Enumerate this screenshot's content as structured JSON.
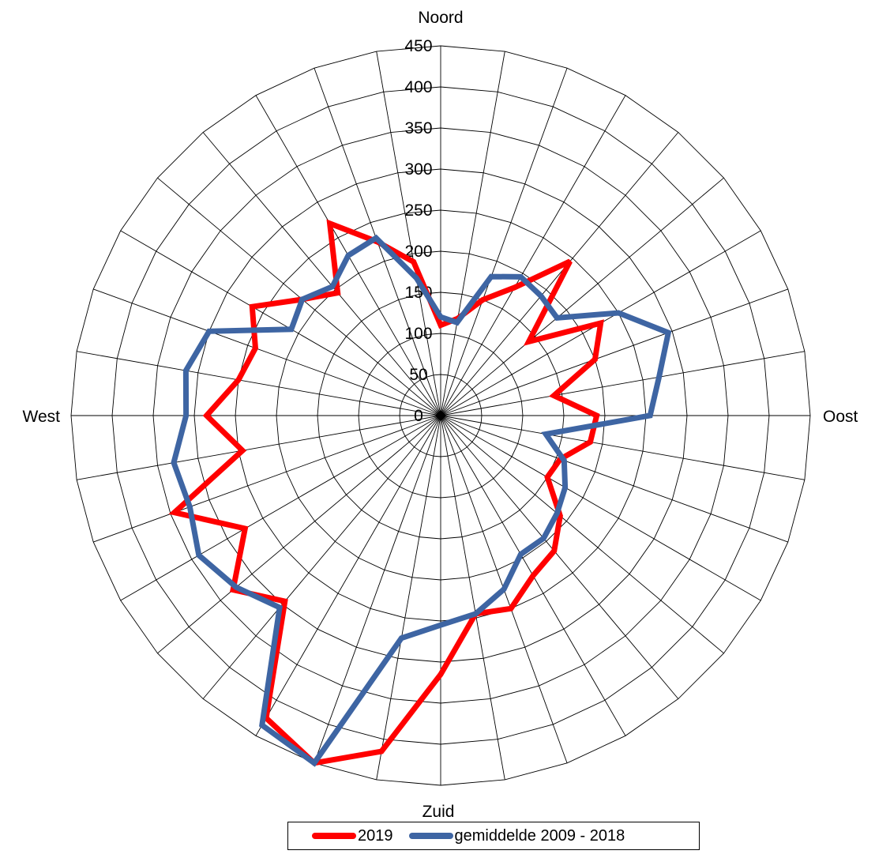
{
  "chart_data": {
    "type": "radar",
    "title": "",
    "direction_labels": {
      "north": "Noord",
      "east": "Oost",
      "south": "Zuid",
      "west": "West"
    },
    "radial_ticks": [
      "0",
      "50",
      "100",
      "150",
      "200",
      "250",
      "300",
      "350",
      "400",
      "450"
    ],
    "rlim": [
      0,
      450
    ],
    "spokes": 36,
    "angle_step_deg": 10,
    "angles_deg": [
      0,
      10,
      20,
      30,
      40,
      50,
      60,
      70,
      80,
      90,
      100,
      110,
      120,
      130,
      140,
      150,
      160,
      170,
      180,
      190,
      200,
      210,
      220,
      230,
      240,
      250,
      260,
      270,
      280,
      290,
      300,
      310,
      320,
      330,
      340,
      350
    ],
    "series": [
      {
        "name": "2019",
        "color": "#ff0000",
        "values": [
          110,
          120,
          150,
          180,
          245,
          140,
          225,
          200,
          140,
          190,
          185,
          155,
          150,
          190,
          215,
          225,
          250,
          245,
          315,
          415,
          450,
          425,
          295,
          330,
          275,
          345,
          245,
          285,
          250,
          240,
          265,
          220,
          195,
          270,
          225,
          190
        ]
      },
      {
        "name": "gemiddelde 2009 - 2018",
        "color": "#3e65a3",
        "values": [
          120,
          115,
          180,
          195,
          190,
          185,
          250,
          295,
          270,
          255,
          130,
          160,
          175,
          185,
          195,
          195,
          225,
          245,
          255,
          275,
          450,
          435,
          305,
          325,
          340,
          325,
          330,
          310,
          315,
          300,
          210,
          220,
          205,
          225,
          230,
          170
        ]
      }
    ],
    "legend": {
      "position": "bottom"
    },
    "grid": true
  }
}
